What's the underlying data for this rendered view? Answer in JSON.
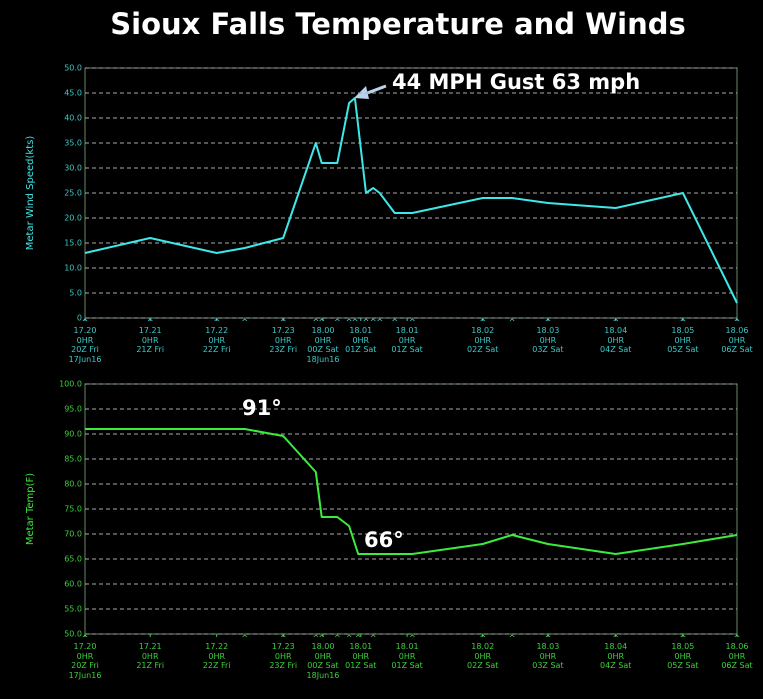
{
  "title": "Sioux Falls Temperature and Winds",
  "chart_data": [
    {
      "type": "line",
      "ylabel": "Metar  Wind Speed(kts)",
      "series": [
        {
          "name": "Metar Wind Speed",
          "color": "#3ee8e8",
          "x": [
            0,
            1.0,
            2.02,
            2.45,
            3.04,
            3.54,
            3.63,
            3.87,
            4.05,
            4.14,
            4.31,
            4.42,
            4.52,
            4.75,
            5.02,
            6.1,
            6.55,
            7.1,
            8.14,
            9.17,
            10
          ],
          "values": [
            13,
            16,
            13,
            14,
            16,
            35,
            31,
            31,
            43,
            44,
            25,
            26,
            25,
            21,
            21,
            24,
            24,
            23,
            22,
            25,
            3
          ]
        }
      ],
      "xlim": [
        0,
        10
      ],
      "xticks": [
        {
          "value": 0,
          "label": "17.20\n0HR\n20Z Fri\n17Jun16"
        },
        {
          "value": 1.0,
          "label": "17.21\n0HR\n21Z Fri"
        },
        {
          "value": 2.02,
          "label": "17.22\n0HR\n22Z Fri"
        },
        {
          "value": 3.04,
          "label": "17.23\n0HR\n23Z Fri"
        },
        {
          "value": 3.65,
          "label": "18.00\n0HR\n00Z Sat\n18Jun16"
        },
        {
          "value": 4.23,
          "label": "18.01\n0HR\n01Z Sat"
        },
        {
          "value": 4.94,
          "label": "18.01\n0HR\n01Z Sat"
        },
        {
          "value": 6.1,
          "label": "18.02\n0HR\n02Z Sat"
        },
        {
          "value": 7.1,
          "label": "18.03\n0HR\n03Z Sat"
        },
        {
          "value": 8.14,
          "label": "18.04\n0HR\n04Z Sat"
        },
        {
          "value": 9.17,
          "label": "18.05\n0HR\n05Z Sat"
        },
        {
          "value": 10,
          "label": "18.06\n0HR\n06Z Sat"
        }
      ],
      "ylim": [
        0,
        50
      ],
      "yticks": [
        {
          "value": 0,
          "label": "0"
        },
        {
          "value": 5,
          "label": "5.0"
        },
        {
          "value": 10,
          "label": "10.0"
        },
        {
          "value": 15,
          "label": "15.0"
        },
        {
          "value": 20,
          "label": "20.0"
        },
        {
          "value": 25,
          "label": "25.0"
        },
        {
          "value": 30,
          "label": "30.0"
        },
        {
          "value": 35,
          "label": "35.0"
        },
        {
          "value": 40,
          "label": "40.0"
        },
        {
          "value": 45,
          "label": "45.0"
        },
        {
          "value": 50,
          "label": "50.0"
        }
      ],
      "grid": true,
      "annotations": [
        "44 MPH Gust 63 mph"
      ]
    },
    {
      "type": "line",
      "ylabel": "Metar  Temp(F)",
      "series": [
        {
          "name": "Metar Temp",
          "color": "#3cec3c",
          "x": [
            0,
            2.45,
            3.04,
            3.54,
            3.63,
            3.87,
            4.05,
            4.19,
            4.42,
            5.02,
            6.1,
            6.55,
            7.1,
            8.14,
            9.17,
            10
          ],
          "values": [
            91,
            91,
            89.6,
            82.4,
            73.4,
            73.4,
            71.6,
            66,
            66,
            66,
            68,
            69.8,
            68,
            66,
            68,
            69.8
          ]
        }
      ],
      "xlim": [
        0,
        10
      ],
      "xticks": [
        {
          "value": 0,
          "label": "17.20\n0HR\n20Z Fri\n17Jun16"
        },
        {
          "value": 1.0,
          "label": "17.21\n0HR\n21Z Fri"
        },
        {
          "value": 2.02,
          "label": "17.22\n0HR\n22Z Fri"
        },
        {
          "value": 3.04,
          "label": "17.23\n0HR\n23Z Fri"
        },
        {
          "value": 3.65,
          "label": "18.00\n0HR\n00Z Sat\n18Jun16"
        },
        {
          "value": 4.23,
          "label": "18.01\n0HR\n01Z Sat"
        },
        {
          "value": 4.94,
          "label": "18.01\n0HR\n01Z Sat"
        },
        {
          "value": 6.1,
          "label": "18.02\n0HR\n02Z Sat"
        },
        {
          "value": 7.1,
          "label": "18.03\n0HR\n03Z Sat"
        },
        {
          "value": 8.14,
          "label": "18.04\n0HR\n04Z Sat"
        },
        {
          "value": 9.17,
          "label": "18.05\n0HR\n05Z Sat"
        },
        {
          "value": 10,
          "label": "18.06\n0HR\n06Z Sat"
        }
      ],
      "ylim": [
        50,
        100
      ],
      "yticks": [
        {
          "value": 50,
          "label": "50.0"
        },
        {
          "value": 55,
          "label": "55.0"
        },
        {
          "value": 60,
          "label": "60.0"
        },
        {
          "value": 65,
          "label": "65.0"
        },
        {
          "value": 70,
          "label": "70.0"
        },
        {
          "value": 75,
          "label": "75.0"
        },
        {
          "value": 80,
          "label": "80.0"
        },
        {
          "value": 85,
          "label": "85.0"
        },
        {
          "value": 90,
          "label": "90.0"
        },
        {
          "value": 95,
          "label": "95.0"
        },
        {
          "value": 100,
          "label": "100.0"
        }
      ],
      "grid": true,
      "annotations": [
        "91°",
        "66°"
      ]
    }
  ]
}
